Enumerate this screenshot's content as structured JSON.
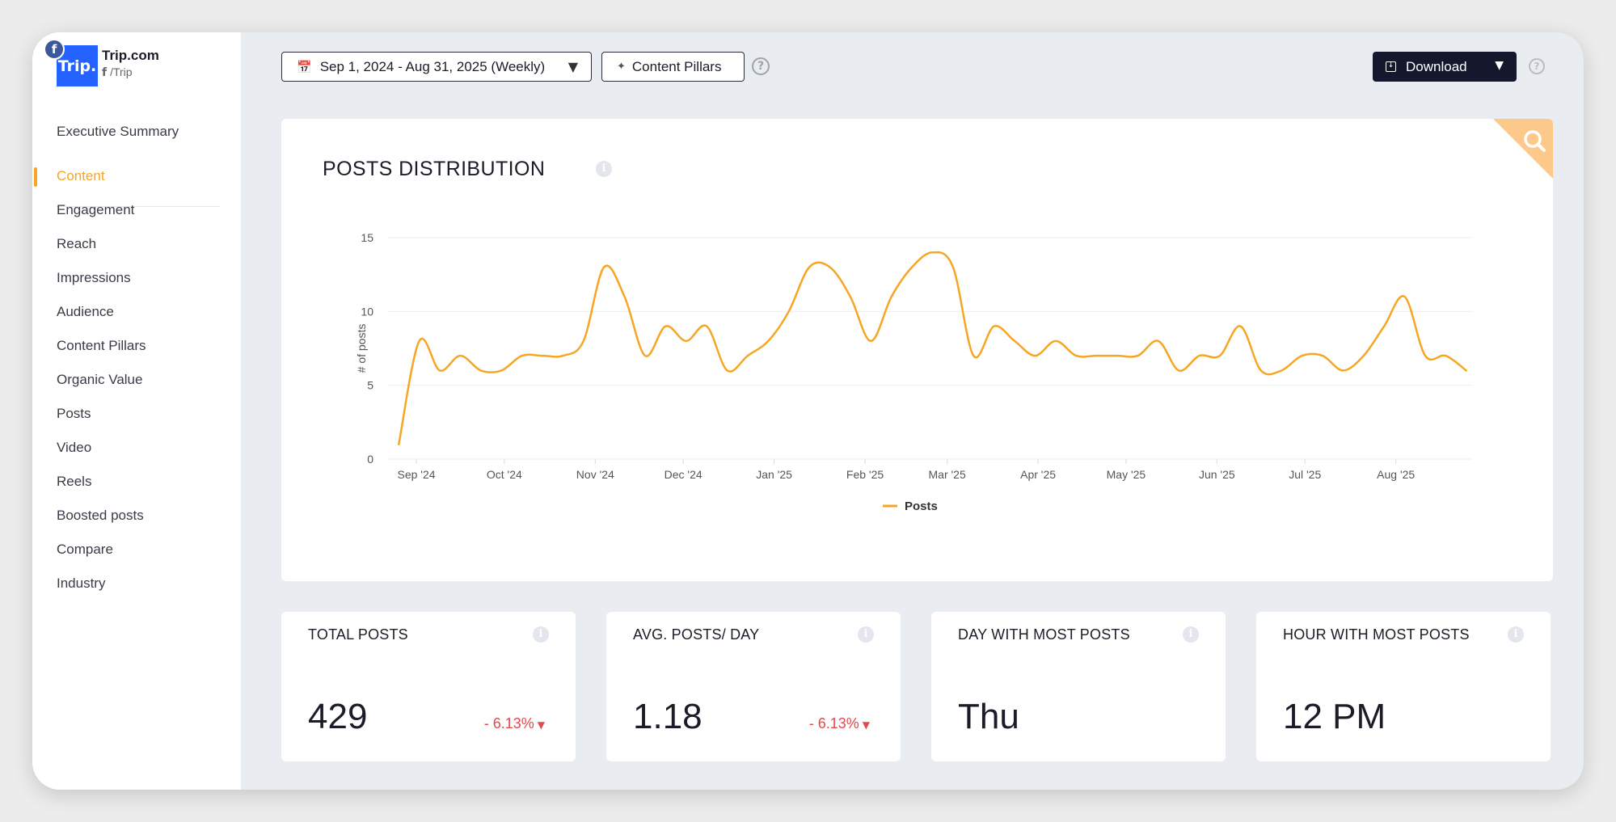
{
  "brand": {
    "logo_text": "Trip.",
    "name": "Trip.com",
    "handle": "/Trip",
    "network_icon": "facebook-icon"
  },
  "sidebar": {
    "items": [
      {
        "label": "Executive Summary",
        "active": false
      },
      {
        "label": "Content",
        "active": true
      },
      {
        "label": "Engagement",
        "active": false
      },
      {
        "label": "Reach",
        "active": false
      },
      {
        "label": "Impressions",
        "active": false
      },
      {
        "label": "Audience",
        "active": false
      },
      {
        "label": "Content Pillars",
        "active": false
      },
      {
        "label": "Organic Value",
        "active": false
      },
      {
        "label": "Posts",
        "active": false
      },
      {
        "label": "Video",
        "active": false
      },
      {
        "label": "Reels",
        "active": false
      },
      {
        "label": "Boosted posts",
        "active": false
      },
      {
        "label": "Compare",
        "active": false
      },
      {
        "label": "Industry",
        "active": false
      }
    ]
  },
  "toolbar": {
    "date_range": "Sep 1, 2024 - Aug 31, 2025 (Weekly)",
    "content_pillars": "Content Pillars",
    "download": "Download"
  },
  "colors": {
    "accent": "#f6a623",
    "line": "#f6a623",
    "negative": "#e5484d",
    "download_bg": "#15182c"
  },
  "chart_data": {
    "type": "line",
    "title": "POSTS DISTRIBUTION",
    "ylabel": "# of posts",
    "xlabel": "",
    "ylim": [
      0,
      15
    ],
    "yticks": [
      0,
      5,
      10,
      15
    ],
    "xticks": [
      "Sep '24",
      "Oct '24",
      "Nov '24",
      "Dec '24",
      "Jan '25",
      "Feb '25",
      "Mar '25",
      "Apr '25",
      "May '25",
      "Jun '25",
      "Jul '25",
      "Aug '25"
    ],
    "x": [
      "2024-08-26",
      "2024-09-02",
      "2024-09-09",
      "2024-09-16",
      "2024-09-23",
      "2024-09-30",
      "2024-10-07",
      "2024-10-14",
      "2024-10-21",
      "2024-10-28",
      "2024-11-04",
      "2024-11-11",
      "2024-11-18",
      "2024-11-25",
      "2024-12-02",
      "2024-12-09",
      "2024-12-16",
      "2024-12-23",
      "2024-12-30",
      "2025-01-06",
      "2025-01-13",
      "2025-01-20",
      "2025-01-27",
      "2025-02-03",
      "2025-02-10",
      "2025-02-17",
      "2025-02-24",
      "2025-03-03",
      "2025-03-10",
      "2025-03-17",
      "2025-03-24",
      "2025-03-31",
      "2025-04-07",
      "2025-04-14",
      "2025-04-21",
      "2025-04-28",
      "2025-05-05",
      "2025-05-12",
      "2025-05-19",
      "2025-05-26",
      "2025-06-02",
      "2025-06-09",
      "2025-06-16",
      "2025-06-23",
      "2025-06-30",
      "2025-07-07",
      "2025-07-14",
      "2025-07-21",
      "2025-07-28",
      "2025-08-04",
      "2025-08-11",
      "2025-08-18",
      "2025-08-25"
    ],
    "series": [
      {
        "name": "Posts",
        "values": [
          1,
          8,
          6,
          7,
          6,
          6,
          7,
          7,
          7,
          8,
          13,
          11,
          7,
          9,
          8,
          9,
          6,
          7,
          8,
          10,
          13,
          13,
          11,
          8,
          11,
          13,
          14,
          13,
          7,
          9,
          8,
          7,
          8,
          7,
          7,
          7,
          7,
          8,
          6,
          7,
          7,
          9,
          6,
          6,
          7,
          7,
          6,
          7,
          9,
          11,
          7,
          7,
          6
        ]
      }
    ],
    "legend": "bottom-center",
    "grid": true
  },
  "stats": [
    {
      "label": "TOTAL POSTS",
      "value": "429",
      "change": "- 6.13%"
    },
    {
      "label": "AVG. POSTS/ DAY",
      "value": "1.18",
      "change": "- 6.13%"
    },
    {
      "label": "DAY WITH MOST POSTS",
      "value": "Thu",
      "change": ""
    },
    {
      "label": "HOUR WITH MOST POSTS",
      "value": "12 PM",
      "change": ""
    }
  ]
}
